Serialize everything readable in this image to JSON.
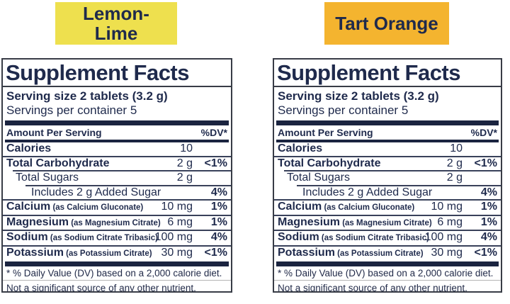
{
  "colors": {
    "background": "#ffffff",
    "navy_text": "#1f2a4c",
    "bar_navy": "#1b2440",
    "panel_border": "#383c46",
    "footnote_rule": "#b4b4b4",
    "lemon_lime_bg": "#eee04e",
    "tart_orange_bg": "#f4b42f"
  },
  "products": [
    {
      "flavor": {
        "name": "Lemon-Lime",
        "lines": [
          "Lemon-",
          "Lime"
        ],
        "bg": "#eee04e",
        "fg": "#1f2a4c"
      },
      "panel": {
        "title": "Supplement Facts",
        "serving_size": "Serving size 2 tablets (3.2 g)",
        "servings_per_container": "Servings per container 5",
        "amount_header": "Amount Per Serving",
        "dv_header": "%DV*",
        "rows": [
          {
            "name": "Calories",
            "sub": "",
            "amount": "10",
            "dv": "",
            "bold": true,
            "level": 0
          },
          {
            "name": "Total Carbohydrate",
            "sub": "",
            "amount": "2 g",
            "dv": "<1%",
            "bold": true,
            "level": 0
          },
          {
            "name": "Total Sugars",
            "sub": "",
            "amount": "2 g",
            "dv": "",
            "bold": false,
            "level": 1
          },
          {
            "name": "Includes 2 g Added Sugar",
            "sub": "",
            "amount": "",
            "dv": "4%",
            "bold": false,
            "level": 2
          },
          {
            "name": "Calcium",
            "sub": "(as Calcium Gluconate)",
            "amount": "10 mg",
            "dv": "1%",
            "bold": true,
            "level": 0
          },
          {
            "name": "Magnesium",
            "sub": "(as Magnesium Citrate)",
            "amount": "6 mg",
            "dv": "1%",
            "bold": true,
            "level": 0
          },
          {
            "name": "Sodium",
            "sub": "(as Sodium Citrate Tribasic)",
            "amount": "100 mg",
            "dv": "4%",
            "bold": true,
            "level": 0
          },
          {
            "name": "Potassium",
            "sub": "(as Potassium Citrate)",
            "amount": "30 mg",
            "dv": "<1%",
            "bold": true,
            "level": 0
          }
        ],
        "footnotes": [
          "* % Daily Value (DV) based on a 2,000 calorie diet.",
          "Not a significant source of any other nutrient."
        ]
      }
    },
    {
      "flavor": {
        "name": "Tart Orange",
        "lines": [
          "Tart Orange"
        ],
        "bg": "#f4b42f",
        "fg": "#1f2a4c"
      },
      "panel": {
        "title": "Supplement Facts",
        "serving_size": "Serving size 2 tablets (3.2 g)",
        "servings_per_container": "Servings per container 5",
        "amount_header": "Amount Per Serving",
        "dv_header": "%DV*",
        "rows": [
          {
            "name": "Calories",
            "sub": "",
            "amount": "10",
            "dv": "",
            "bold": true,
            "level": 0
          },
          {
            "name": "Total Carbohydrate",
            "sub": "",
            "amount": "2 g",
            "dv": "<1%",
            "bold": true,
            "level": 0
          },
          {
            "name": "Total Sugars",
            "sub": "",
            "amount": "2 g",
            "dv": "",
            "bold": false,
            "level": 1
          },
          {
            "name": "Includes 2 g Added Sugar",
            "sub": "",
            "amount": "",
            "dv": "4%",
            "bold": false,
            "level": 2
          },
          {
            "name": "Calcium",
            "sub": "(as Calcium Gluconate)",
            "amount": "10 mg",
            "dv": "1%",
            "bold": true,
            "level": 0
          },
          {
            "name": "Magnesium",
            "sub": "(as Magnesium Citrate)",
            "amount": "6 mg",
            "dv": "1%",
            "bold": true,
            "level": 0
          },
          {
            "name": "Sodium",
            "sub": "(as Sodium Citrate Tribasic)",
            "amount": "100 mg",
            "dv": "4%",
            "bold": true,
            "level": 0
          },
          {
            "name": "Potassium",
            "sub": "(as Potassium Citrate)",
            "amount": "30 mg",
            "dv": "<1%",
            "bold": true,
            "level": 0
          }
        ],
        "footnotes": [
          "* % Daily Value (DV) based on a 2,000 calorie diet.",
          "Not a significant source of any other nutrient."
        ]
      }
    }
  ]
}
